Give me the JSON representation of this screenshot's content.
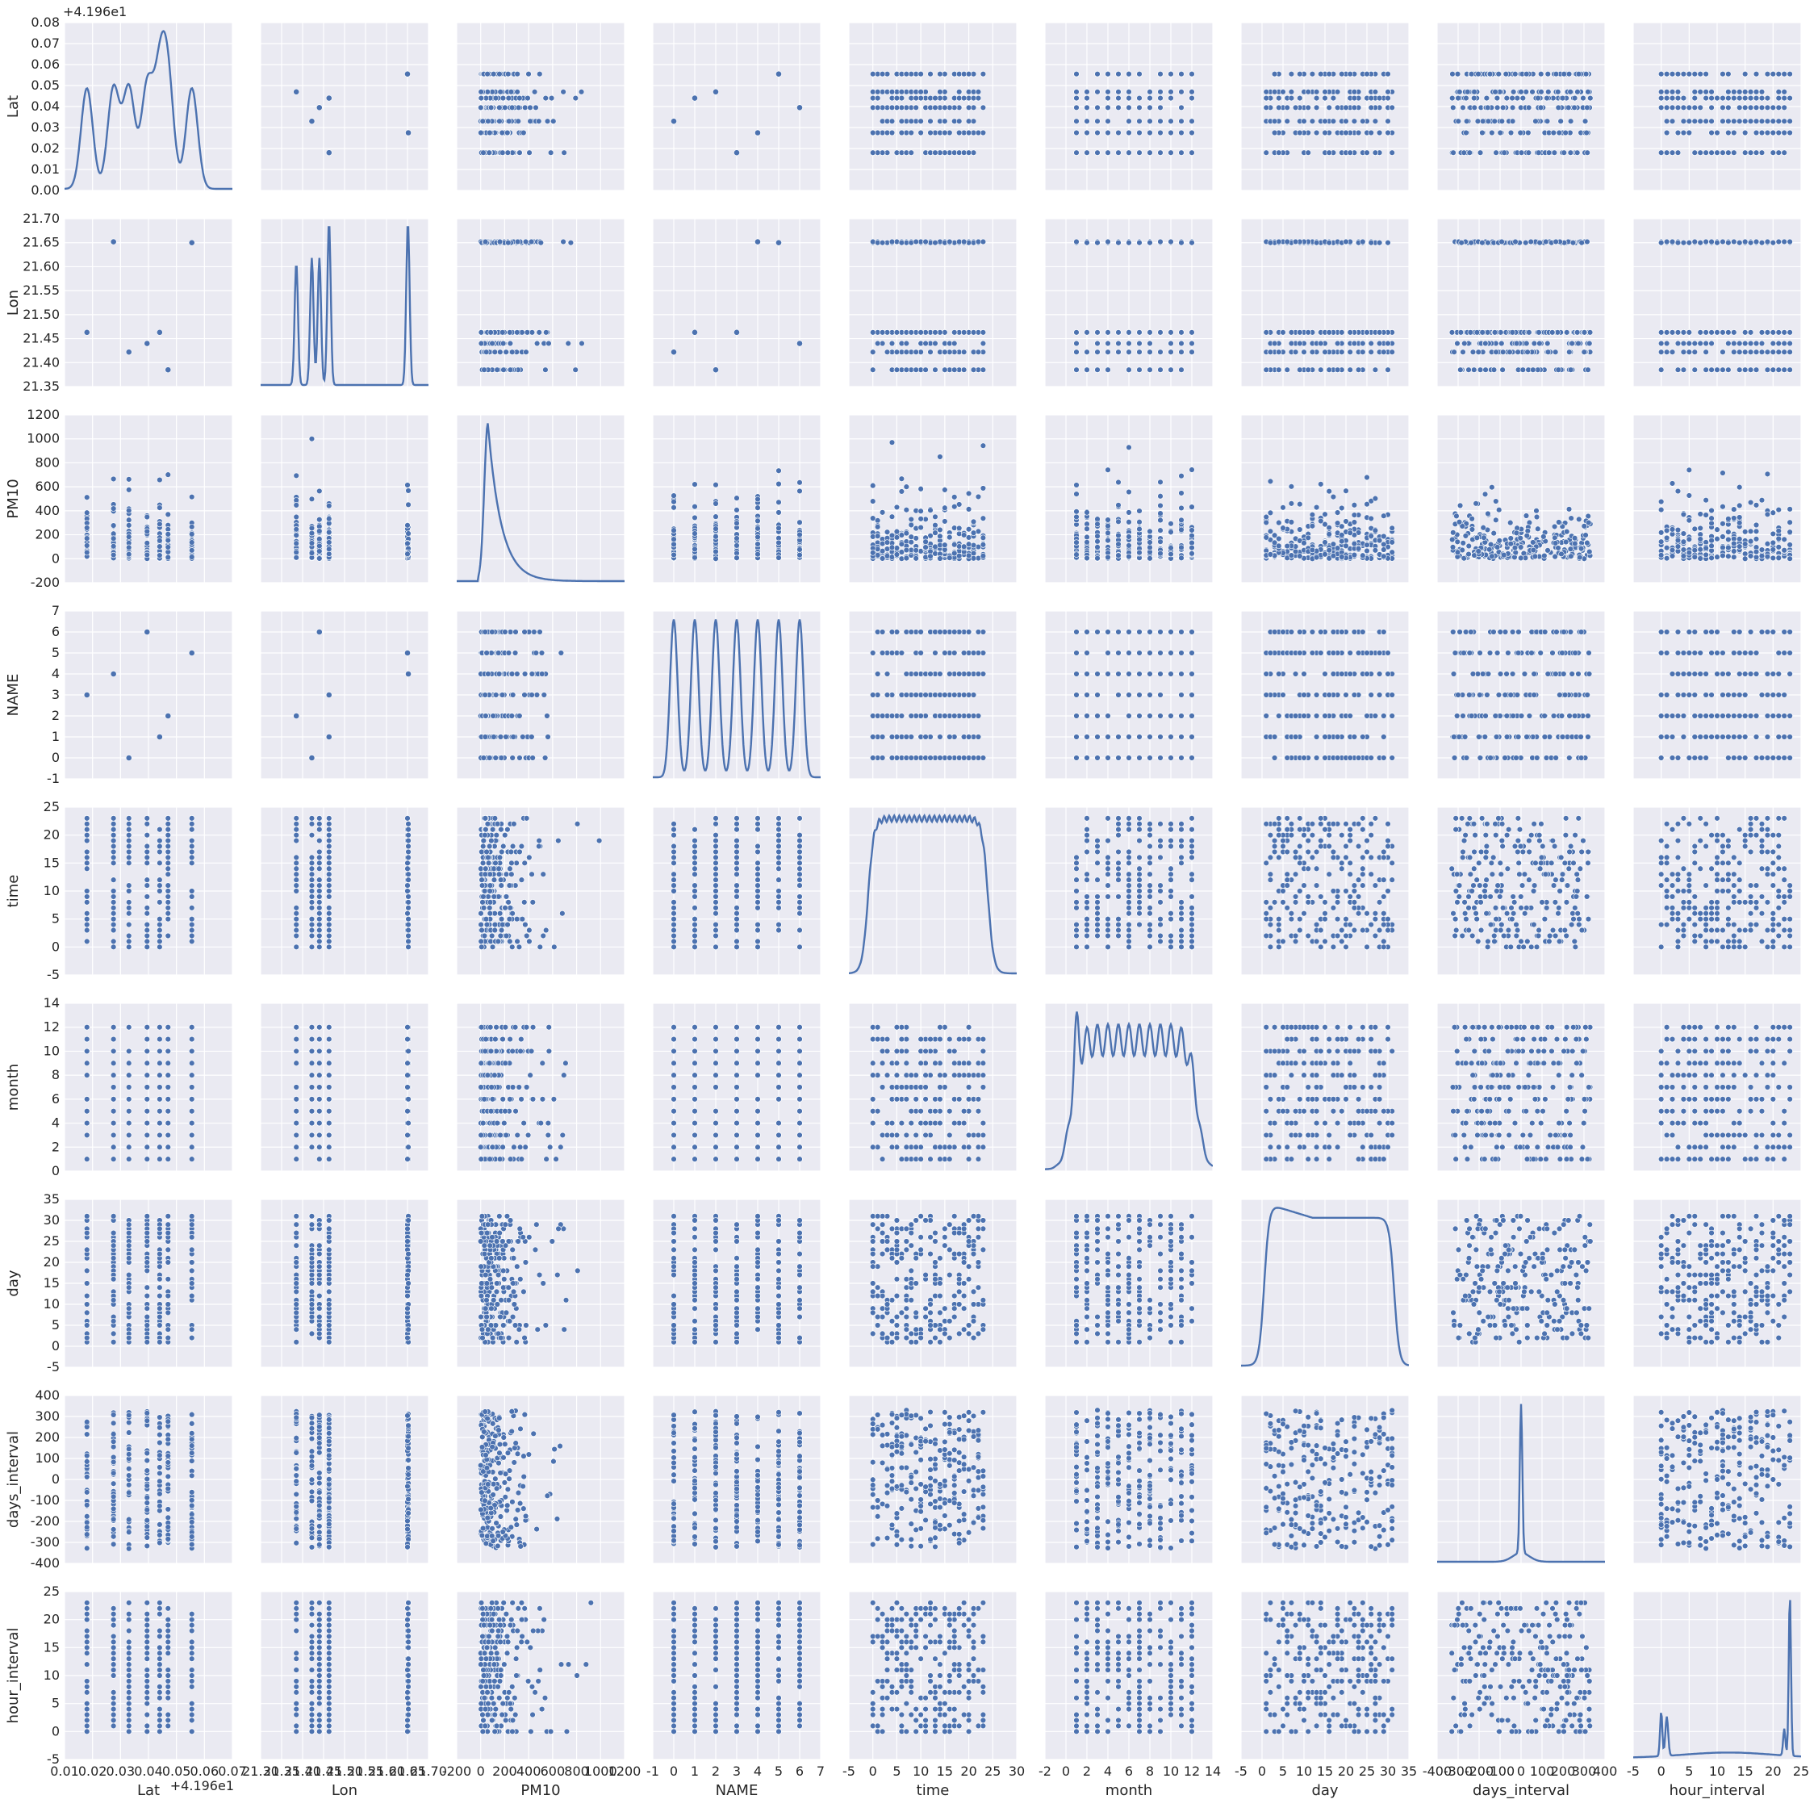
{
  "chart_data": {
    "type": "pairplot",
    "style": {
      "panel_background": "#eaeaf2",
      "grid_color": "#ffffff",
      "marker_color": "#4c72b0",
      "marker_edge": "#ffffff",
      "grid": true
    },
    "variables": [
      {
        "name": "Lat",
        "ticks": [
          "0.01",
          "0.02",
          "0.03",
          "0.04",
          "0.05",
          "0.06",
          "0.07"
        ],
        "range": [
          0.01,
          0.07
        ],
        "offset_label": "+4.196e1",
        "y_ticks": [
          "0.00",
          "0.01",
          "0.02",
          "0.03",
          "0.04",
          "0.05",
          "0.06",
          "0.07",
          "0.08"
        ],
        "y_range": [
          0.0,
          0.08
        ],
        "values": [
          0.018,
          0.0275,
          0.033,
          0.0395,
          0.044,
          0.047,
          0.0555
        ]
      },
      {
        "name": "Lon",
        "ticks": [
          "21.30",
          "21.35",
          "21.40",
          "21.45",
          "21.50",
          "21.55",
          "21.60",
          "21.65",
          "21.70"
        ],
        "range": [
          21.3,
          21.7
        ],
        "y_ticks": [
          "21.35",
          "21.40",
          "21.45",
          "21.50",
          "21.55",
          "21.60",
          "21.65",
          "21.70"
        ],
        "y_range": [
          21.35,
          21.7
        ],
        "values": [
          21.385,
          21.422,
          21.44,
          21.463,
          21.65,
          21.652
        ]
      },
      {
        "name": "PM10",
        "ticks": [
          "-200",
          "0",
          "200",
          "400",
          "600",
          "800",
          "1000",
          "1200"
        ],
        "range": [
          -200,
          1200
        ],
        "y_ticks": [
          "-200",
          "0",
          "200",
          "400",
          "600",
          "800",
          "1000",
          "1200"
        ],
        "y_range": [
          -200,
          1200
        ],
        "values_max": 1100
      },
      {
        "name": "NAME",
        "ticks": [
          "-1",
          "0",
          "1",
          "2",
          "3",
          "4",
          "5",
          "6",
          "7"
        ],
        "range": [
          -1,
          7
        ],
        "y_ticks": [
          "-1",
          "0",
          "1",
          "2",
          "3",
          "4",
          "5",
          "6",
          "7"
        ],
        "y_range": [
          -1,
          7
        ],
        "values": [
          0,
          1,
          2,
          3,
          4,
          5,
          6
        ]
      },
      {
        "name": "time",
        "ticks": [
          "-5",
          "0",
          "5",
          "10",
          "15",
          "20",
          "25",
          "30"
        ],
        "range": [
          -5,
          30
        ],
        "y_ticks": [
          "-5",
          "0",
          "5",
          "10",
          "15",
          "20",
          "25"
        ],
        "y_range": [
          -5,
          25
        ],
        "values_range": [
          0,
          23
        ]
      },
      {
        "name": "month",
        "ticks": [
          "-2",
          "0",
          "2",
          "4",
          "6",
          "8",
          "10",
          "12",
          "14"
        ],
        "range": [
          -2,
          14
        ],
        "y_ticks": [
          "0",
          "2",
          "4",
          "6",
          "8",
          "10",
          "12",
          "14"
        ],
        "y_range": [
          0,
          14
        ],
        "values_range": [
          1,
          12
        ]
      },
      {
        "name": "day",
        "ticks": [
          "-5",
          "0",
          "5",
          "10",
          "15",
          "20",
          "25",
          "30",
          "35"
        ],
        "range": [
          -5,
          35
        ],
        "y_ticks": [
          "-5",
          "0",
          "5",
          "10",
          "15",
          "20",
          "25",
          "30",
          "35"
        ],
        "y_range": [
          -5,
          35
        ],
        "values_range": [
          1,
          31
        ]
      },
      {
        "name": "days_interval",
        "ticks": [
          "-400",
          "-300",
          "-200",
          "-100",
          "0",
          "100",
          "200",
          "300",
          "400"
        ],
        "range": [
          -400,
          400
        ],
        "y_ticks": [
          "-400",
          "-300",
          "-200",
          "-100",
          "0",
          "100",
          "200",
          "300",
          "400"
        ],
        "y_range": [
          -400,
          400
        ],
        "values_range": [
          -330,
          350
        ]
      },
      {
        "name": "hour_interval",
        "ticks": [
          "-5",
          "0",
          "5",
          "10",
          "15",
          "20",
          "25"
        ],
        "range": [
          -5,
          25
        ],
        "y_ticks": [
          "-5",
          "0",
          "5",
          "10",
          "15",
          "20",
          "25"
        ],
        "y_range": [
          -5,
          25
        ],
        "values_range": [
          0,
          23
        ]
      }
    ],
    "diagonal": "kde",
    "offdiagonal": "scatter",
    "xlabel": "",
    "ylabel": "",
    "title": ""
  }
}
